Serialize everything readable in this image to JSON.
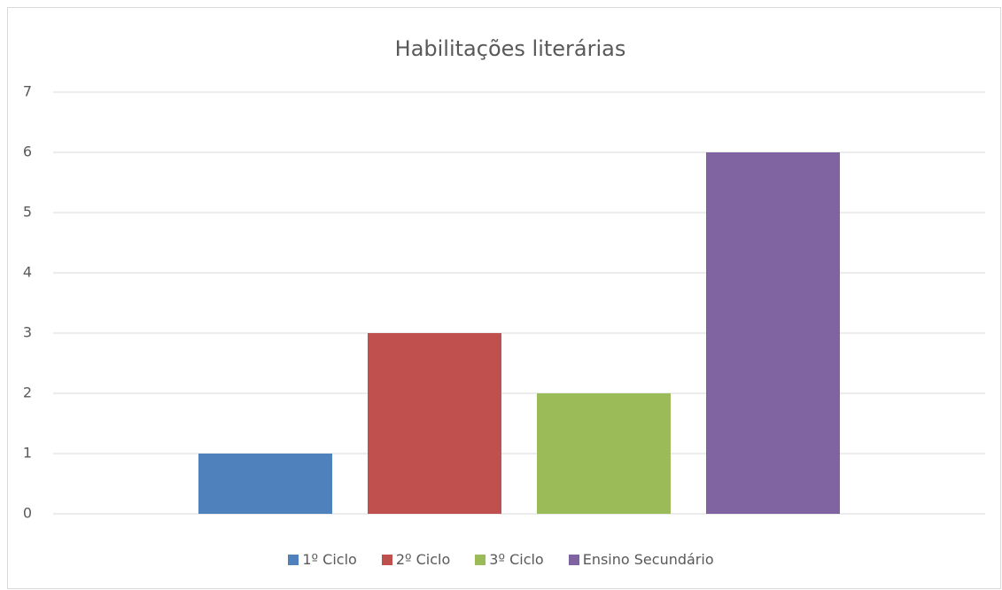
{
  "chart_data": {
    "type": "bar",
    "title": "Habilitações literárias",
    "categories": [
      null
    ],
    "series": [
      {
        "name": "1º Ciclo",
        "color": "#4f81bd",
        "values": [
          1
        ]
      },
      {
        "name": "2º Ciclo",
        "color": "#c0504d",
        "values": [
          3
        ]
      },
      {
        "name": "3º Ciclo",
        "color": "#9bbb59",
        "values": [
          2
        ]
      },
      {
        "name": "Ensino Secundário",
        "color": "#8064a2",
        "values": [
          6
        ]
      }
    ],
    "ylim": [
      0,
      7
    ],
    "yticks": [
      0,
      1,
      2,
      3,
      4,
      5,
      6,
      7
    ],
    "grid": true,
    "legend": "bottom"
  }
}
